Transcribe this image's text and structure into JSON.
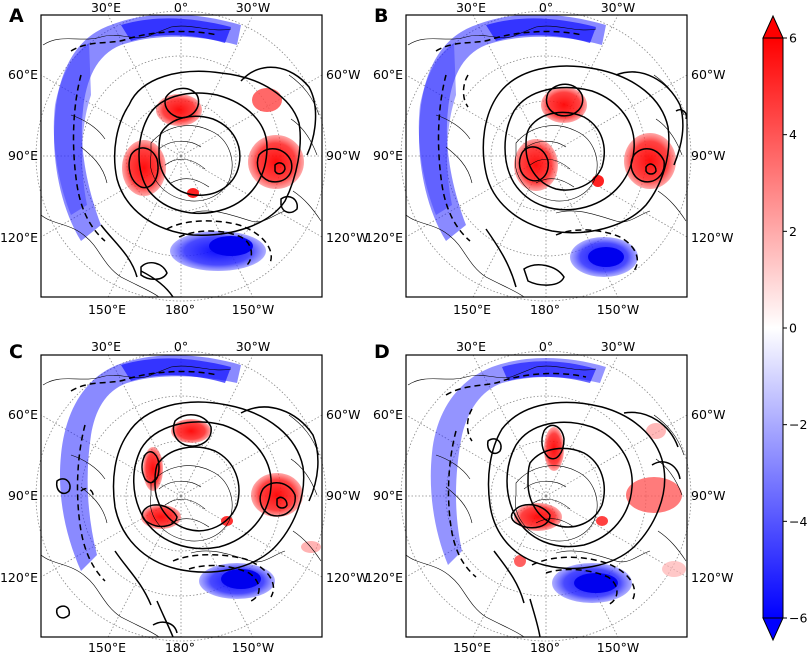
{
  "panels": [
    {
      "letter": "A"
    },
    {
      "letter": "B"
    },
    {
      "letter": "C"
    },
    {
      "letter": "D"
    }
  ],
  "longitude_labels": {
    "top_left": "30°E",
    "top_center": "0°",
    "top_right": "30°W",
    "upper_left": "60°E",
    "upper_right": "60°W",
    "middle_left": "90°E",
    "middle_right": "90°W",
    "lower_left": "120°E",
    "lower_right": "120°W",
    "bottom_left": "150°E",
    "bottom_center": "180°",
    "bottom_right": "150°W"
  },
  "colorbar": {
    "ticks": [
      "6",
      "4",
      "2",
      "0",
      "−2",
      "−4",
      "−6"
    ],
    "tick_values": [
      6,
      4,
      2,
      0,
      -2,
      -4,
      -6
    ],
    "range": [
      -6,
      6
    ],
    "colormap": "bwr",
    "colors": {
      "max": "#ff0000",
      "mid": "#ffffff",
      "min": "#0000ff"
    },
    "extend": "both"
  },
  "colors": {
    "positive": "#ff0000",
    "negative": "#0000ff",
    "contour": "#000000",
    "coastline": "#000000",
    "graticule": "#808080"
  }
}
